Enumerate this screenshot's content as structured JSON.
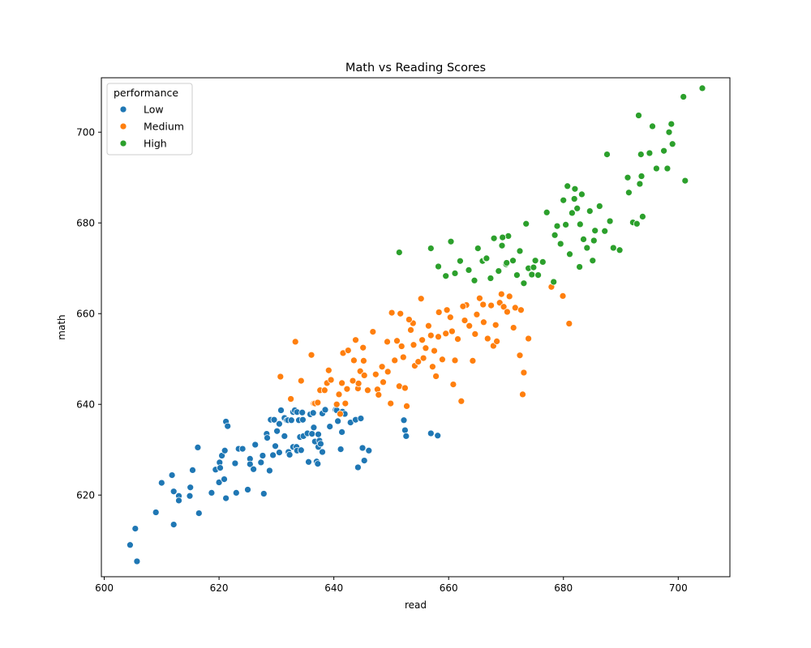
{
  "chart_data": {
    "type": "scatter",
    "title": "Math vs Reading Scores",
    "xlabel": "read",
    "ylabel": "math",
    "xlim": [
      599.5,
      709
    ],
    "ylim": [
      602,
      712
    ],
    "xticks": [
      600,
      620,
      640,
      660,
      680,
      700
    ],
    "yticks": [
      620,
      640,
      660,
      680,
      700
    ],
    "grid": false,
    "legend": {
      "title": "performance",
      "placement": "top-left"
    },
    "series": [
      {
        "name": "Low",
        "color": "#1f77b4",
        "points": [
          [
            604.5,
            609
          ],
          [
            605.7,
            605.4
          ],
          [
            605.4,
            612.6
          ],
          [
            609,
            616.2
          ],
          [
            610,
            622.7
          ],
          [
            611.8,
            624.4
          ],
          [
            612.1,
            620.8
          ],
          [
            612.1,
            613.5
          ],
          [
            613,
            619.8
          ],
          [
            613,
            618.8
          ],
          [
            614.9,
            619.8
          ],
          [
            615,
            621.7
          ],
          [
            615.4,
            625.5
          ],
          [
            616.3,
            630.5
          ],
          [
            616.5,
            616
          ],
          [
            618.7,
            620.5
          ],
          [
            619.4,
            625.6
          ],
          [
            620,
            622.8
          ],
          [
            620.1,
            627.2
          ],
          [
            620.2,
            626
          ],
          [
            620.5,
            628.7
          ],
          [
            621,
            629.8
          ],
          [
            620.9,
            623.5
          ],
          [
            621.2,
            636.2
          ],
          [
            621.2,
            619.3
          ],
          [
            621.5,
            635.2
          ],
          [
            622.8,
            627
          ],
          [
            623,
            620.5
          ],
          [
            623.4,
            630.2
          ],
          [
            624.1,
            630.2
          ],
          [
            625,
            621.2
          ],
          [
            625.4,
            628
          ],
          [
            625.4,
            626.8
          ],
          [
            626,
            625.7
          ],
          [
            626.3,
            631.1
          ],
          [
            627.3,
            627.2
          ],
          [
            627.6,
            628.7
          ],
          [
            627.8,
            620.3
          ],
          [
            628.3,
            633.5
          ],
          [
            628.4,
            632.6
          ],
          [
            628.8,
            625.4
          ],
          [
            629,
            636.6
          ],
          [
            629.4,
            628.8
          ],
          [
            629.6,
            636.6
          ],
          [
            629.8,
            630.8
          ],
          [
            630.1,
            634.1
          ],
          [
            630.5,
            635.7
          ],
          [
            630.5,
            629.4
          ],
          [
            630.8,
            638.7
          ],
          [
            631.4,
            637
          ],
          [
            631.4,
            633
          ],
          [
            631.8,
            636.5
          ],
          [
            632,
            636.5
          ],
          [
            632.1,
            629.5
          ],
          [
            632.3,
            628.9
          ],
          [
            632.6,
            636.5
          ],
          [
            632.9,
            630.6
          ],
          [
            632.9,
            638.3
          ],
          [
            633.2,
            638.7
          ],
          [
            633.5,
            630.6
          ],
          [
            633.6,
            629.8
          ],
          [
            633.6,
            638.3
          ],
          [
            633.9,
            636.5
          ],
          [
            634.1,
            632.8
          ],
          [
            634.3,
            629.9
          ],
          [
            634.5,
            638.2
          ],
          [
            634.6,
            636.6
          ],
          [
            634.7,
            633
          ],
          [
            635.4,
            633.6
          ],
          [
            635.6,
            627.3
          ],
          [
            635.9,
            637.8
          ],
          [
            636.2,
            633.5
          ],
          [
            636.4,
            638.1
          ],
          [
            636.5,
            634.9
          ],
          [
            636.7,
            631.8
          ],
          [
            637,
            627.4
          ],
          [
            637.2,
            626.9
          ],
          [
            637.3,
            633.4
          ],
          [
            637.3,
            630.6
          ],
          [
            637.5,
            632
          ],
          [
            637.7,
            631.3
          ],
          [
            638,
            629.5
          ],
          [
            638,
            638
          ],
          [
            638.5,
            638.8
          ],
          [
            639.3,
            635.1
          ],
          [
            640.3,
            638.8
          ],
          [
            640.5,
            638.7
          ],
          [
            640.7,
            636.3
          ],
          [
            641.2,
            630.1
          ],
          [
            641.4,
            633.9
          ],
          [
            641.5,
            638.4
          ],
          [
            641.9,
            637.9
          ],
          [
            642.9,
            636
          ],
          [
            643.8,
            636.6
          ],
          [
            644.2,
            626.1
          ],
          [
            644.7,
            636.9
          ],
          [
            645,
            630.4
          ],
          [
            645.3,
            627.6
          ],
          [
            646.1,
            629.8
          ],
          [
            652.2,
            636.5
          ],
          [
            652.4,
            634.3
          ],
          [
            652.6,
            633
          ],
          [
            656.9,
            633.6
          ],
          [
            658.1,
            633.1
          ]
        ]
      },
      {
        "name": "Medium",
        "color": "#ff7f0e",
        "points": [
          [
            630.7,
            646.1
          ],
          [
            632.5,
            641.2
          ],
          [
            633.3,
            653.8
          ],
          [
            634.3,
            645.2
          ],
          [
            636.1,
            650.9
          ],
          [
            636.5,
            640.2
          ],
          [
            636.7,
            640.2
          ],
          [
            637.2,
            640.4
          ],
          [
            637.6,
            643.1
          ],
          [
            638.4,
            643.1
          ],
          [
            638.8,
            644.7
          ],
          [
            639.1,
            647.5
          ],
          [
            639.5,
            645.4
          ],
          [
            640.5,
            640
          ],
          [
            640.9,
            642.2
          ],
          [
            641.1,
            637.9
          ],
          [
            641.4,
            644.7
          ],
          [
            641.6,
            651.3
          ],
          [
            642,
            640.2
          ],
          [
            642.3,
            643.4
          ],
          [
            642.5,
            651.9
          ],
          [
            643.3,
            645.2
          ],
          [
            643.5,
            649.7
          ],
          [
            643.8,
            654.2
          ],
          [
            644.2,
            643.5
          ],
          [
            644.3,
            644.6
          ],
          [
            644.6,
            647.3
          ],
          [
            645.1,
            652.5
          ],
          [
            645.2,
            649.6
          ],
          [
            645.3,
            646.4
          ],
          [
            645.9,
            643.1
          ],
          [
            647.3,
            646.6
          ],
          [
            647.6,
            643.3
          ],
          [
            647.8,
            642.1
          ],
          [
            648.4,
            648.3
          ],
          [
            648.6,
            644.9
          ],
          [
            649.4,
            647.2
          ],
          [
            649.9,
            640.2
          ],
          [
            650.6,
            649.7
          ],
          [
            651,
            654
          ],
          [
            651.4,
            644
          ],
          [
            651.8,
            652.8
          ],
          [
            652.1,
            650.4
          ],
          [
            652.4,
            643.6
          ],
          [
            652.7,
            639.6
          ],
          [
            653.4,
            656.4
          ],
          [
            653.8,
            657.9
          ],
          [
            653.9,
            653.1
          ],
          [
            654.1,
            648.5
          ],
          [
            654.7,
            649.4
          ],
          [
            655.4,
            654.2
          ],
          [
            655.6,
            650.2
          ],
          [
            656,
            652.4
          ],
          [
            656.5,
            657.3
          ],
          [
            657.2,
            648.3
          ],
          [
            657.5,
            651.8
          ],
          [
            657.8,
            646.2
          ],
          [
            658.2,
            654.9
          ],
          [
            658.9,
            649.9
          ],
          [
            659.5,
            655.6
          ],
          [
            659.7,
            660.8
          ],
          [
            660.3,
            659.2
          ],
          [
            660.8,
            644.4
          ],
          [
            661.1,
            649.7
          ],
          [
            661.6,
            654.4
          ],
          [
            662.2,
            640.7
          ],
          [
            662.8,
            658.5
          ],
          [
            663.1,
            661.9
          ],
          [
            663.6,
            657.3
          ],
          [
            664.2,
            649.6
          ],
          [
            664.9,
            659.8
          ],
          [
            665.4,
            663.4
          ],
          [
            666.1,
            658.1
          ],
          [
            666.8,
            654.5
          ],
          [
            667.4,
            661.8
          ],
          [
            667.8,
            652.9
          ],
          [
            668.2,
            657.5
          ],
          [
            668.9,
            662.4
          ],
          [
            669.6,
            661.5
          ],
          [
            670.2,
            660.4
          ],
          [
            670.6,
            663.8
          ],
          [
            671.3,
            656.9
          ],
          [
            671.6,
            661.3
          ],
          [
            672.4,
            650.8
          ],
          [
            672.9,
            642.2
          ],
          [
            673.1,
            647
          ],
          [
            673.9,
            654.5
          ],
          [
            677.9,
            665.9
          ],
          [
            679.9,
            663.9
          ],
          [
            681,
            657.8
          ],
          [
            650.1,
            660.2
          ],
          [
            651.6,
            660
          ],
          [
            655.2,
            663.3
          ],
          [
            658.3,
            660.3
          ],
          [
            662.5,
            661.6
          ],
          [
            666,
            662
          ],
          [
            669.2,
            664.3
          ],
          [
            672.6,
            660.8
          ],
          [
            646.8,
            656
          ],
          [
            649.3,
            653.8
          ],
          [
            653.1,
            658.7
          ],
          [
            656.9,
            655.2
          ],
          [
            660.6,
            656.1
          ],
          [
            664.6,
            655.5
          ],
          [
            668.4,
            653.9
          ]
        ]
      },
      {
        "name": "High",
        "color": "#2ca02c",
        "points": [
          [
            651.4,
            673.5
          ],
          [
            656.9,
            674.4
          ],
          [
            658.2,
            670.4
          ],
          [
            659.5,
            668.3
          ],
          [
            660.4,
            675.9
          ],
          [
            661.1,
            668.9
          ],
          [
            662,
            671.6
          ],
          [
            663.5,
            669.6
          ],
          [
            664.5,
            667.3
          ],
          [
            665.1,
            674.4
          ],
          [
            665.9,
            671.6
          ],
          [
            666.5,
            672.1
          ],
          [
            667.3,
            667.8
          ],
          [
            667.9,
            676.6
          ],
          [
            668.7,
            669.4
          ],
          [
            669.3,
            675
          ],
          [
            670,
            670.9
          ],
          [
            670.4,
            677.1
          ],
          [
            671.2,
            671.7
          ],
          [
            671.9,
            668.5
          ],
          [
            672.4,
            673.8
          ],
          [
            673.1,
            666.7
          ],
          [
            673.5,
            679.8
          ],
          [
            673.9,
            670
          ],
          [
            674.5,
            668.6
          ],
          [
            675.1,
            671.7
          ],
          [
            675.6,
            668.5
          ],
          [
            676.4,
            671.4
          ],
          [
            677.1,
            682.3
          ],
          [
            678.5,
            677.3
          ],
          [
            678.9,
            679.3
          ],
          [
            679.5,
            675.4
          ],
          [
            680,
            685
          ],
          [
            680.4,
            679.6
          ],
          [
            680.7,
            688.1
          ],
          [
            681.1,
            673.1
          ],
          [
            681.5,
            682.2
          ],
          [
            682,
            687.5
          ],
          [
            682.4,
            683.2
          ],
          [
            682.9,
            679.7
          ],
          [
            683.2,
            686.3
          ],
          [
            683.5,
            676.4
          ],
          [
            684.1,
            674.5
          ],
          [
            684.6,
            682.6
          ],
          [
            685.1,
            671.7
          ],
          [
            685.5,
            678.3
          ],
          [
            686.3,
            683.7
          ],
          [
            687.2,
            678.2
          ],
          [
            687.6,
            695.1
          ],
          [
            688.7,
            674.5
          ],
          [
            689.8,
            674
          ],
          [
            691.2,
            690
          ],
          [
            691.4,
            686.7
          ],
          [
            692.1,
            680.1
          ],
          [
            693.1,
            703.7
          ],
          [
            693.3,
            688.6
          ],
          [
            693.5,
            695.1
          ],
          [
            693.6,
            690.3
          ],
          [
            693.8,
            681.4
          ],
          [
            695,
            695.4
          ],
          [
            695.5,
            701.3
          ],
          [
            696.2,
            692
          ],
          [
            697.5,
            695.9
          ],
          [
            698.1,
            692
          ],
          [
            698.4,
            700
          ],
          [
            698.8,
            701.8
          ],
          [
            699,
            697.4
          ],
          [
            700.9,
            707.8
          ],
          [
            701.2,
            689.3
          ],
          [
            704.2,
            709.7
          ],
          [
            666.6,
            672.2
          ],
          [
            670.1,
            671.2
          ],
          [
            674.8,
            670.2
          ],
          [
            678.3,
            667
          ],
          [
            682.8,
            670.3
          ],
          [
            685.3,
            676.1
          ],
          [
            688.1,
            680.4
          ],
          [
            692.8,
            679.8
          ],
          [
            669.4,
            676.8
          ],
          [
            681.9,
            685.3
          ]
        ]
      }
    ]
  }
}
